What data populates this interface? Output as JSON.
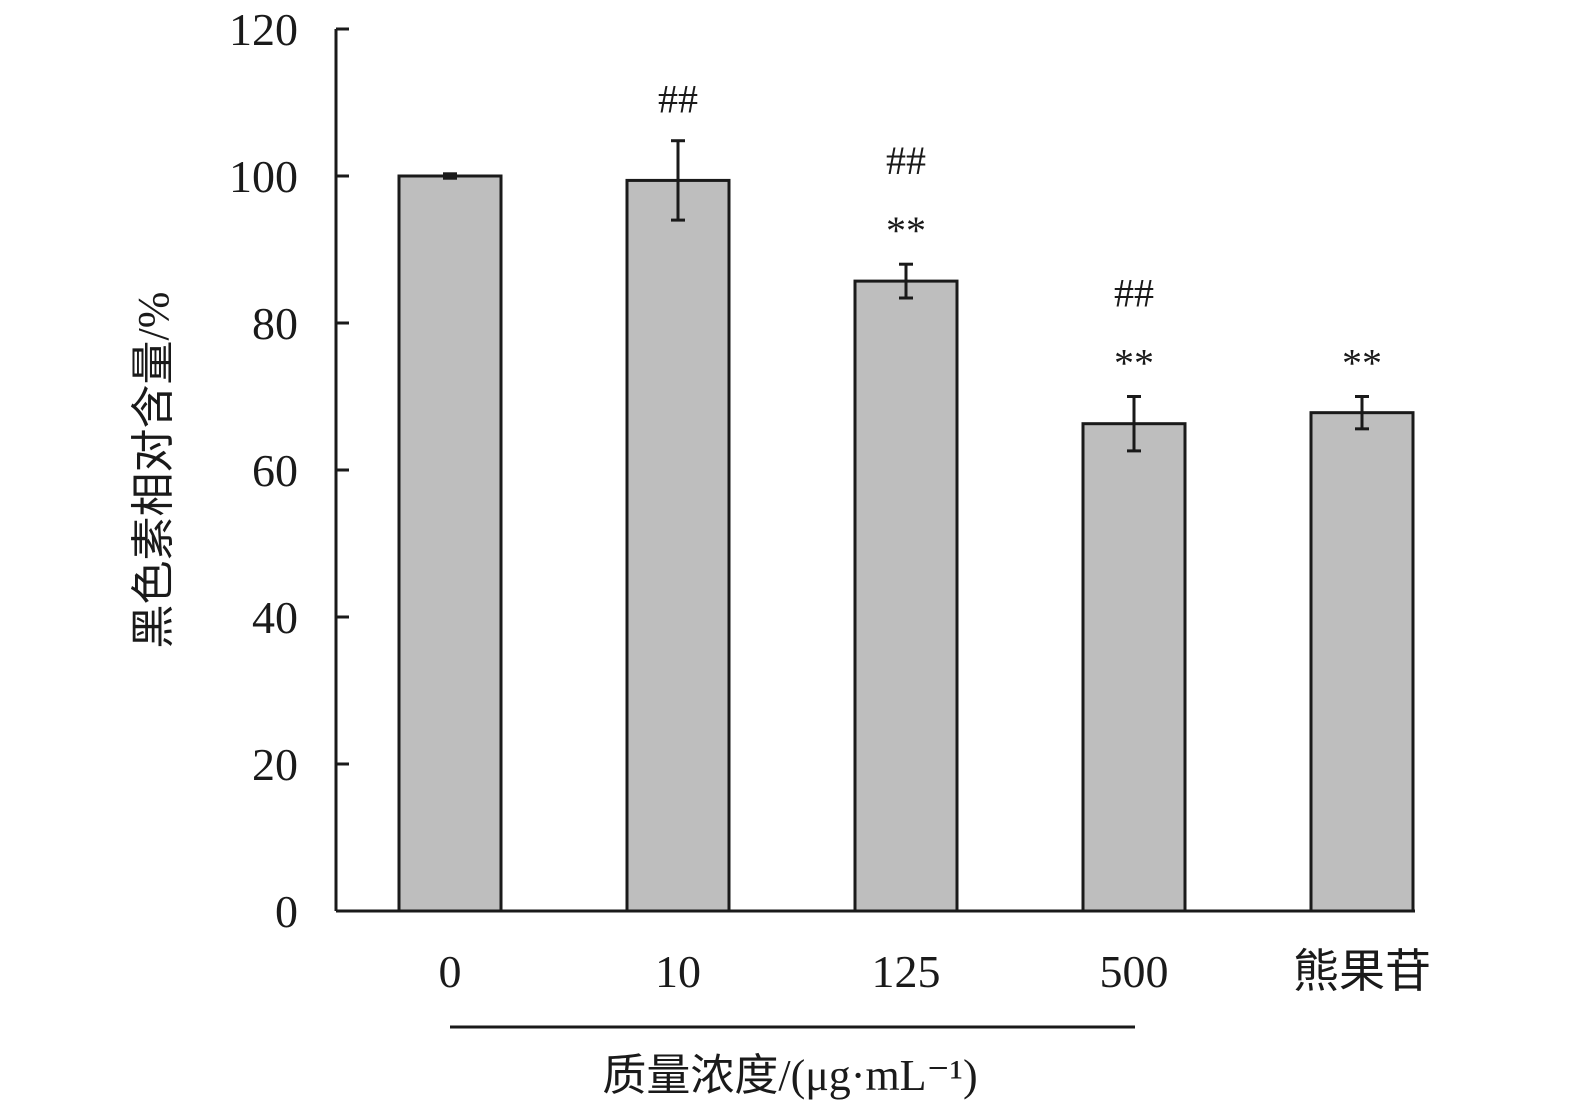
{
  "chart_data": {
    "type": "bar",
    "title": "",
    "xlabel": "质量浓度/(μg·mL⁻¹)",
    "ylabel": "黑色素相对含量/%",
    "ylim": [
      0,
      120
    ],
    "yticks": [
      "0",
      "20",
      "40",
      "60",
      "80",
      "100",
      "120"
    ],
    "categories": [
      "0",
      "10",
      "125",
      "500",
      "熊果苷"
    ],
    "values": [
      100,
      99.4,
      85.7,
      66.3,
      67.8
    ],
    "errors": [
      0.3,
      5.4,
      2.3,
      3.7,
      2.2
    ],
    "annotations_hash": [
      "",
      "##",
      "##",
      "##",
      ""
    ],
    "annotations_star": [
      "",
      "",
      "**",
      "**",
      "**"
    ],
    "bar_color": "#bebebe",
    "grid": false
  }
}
